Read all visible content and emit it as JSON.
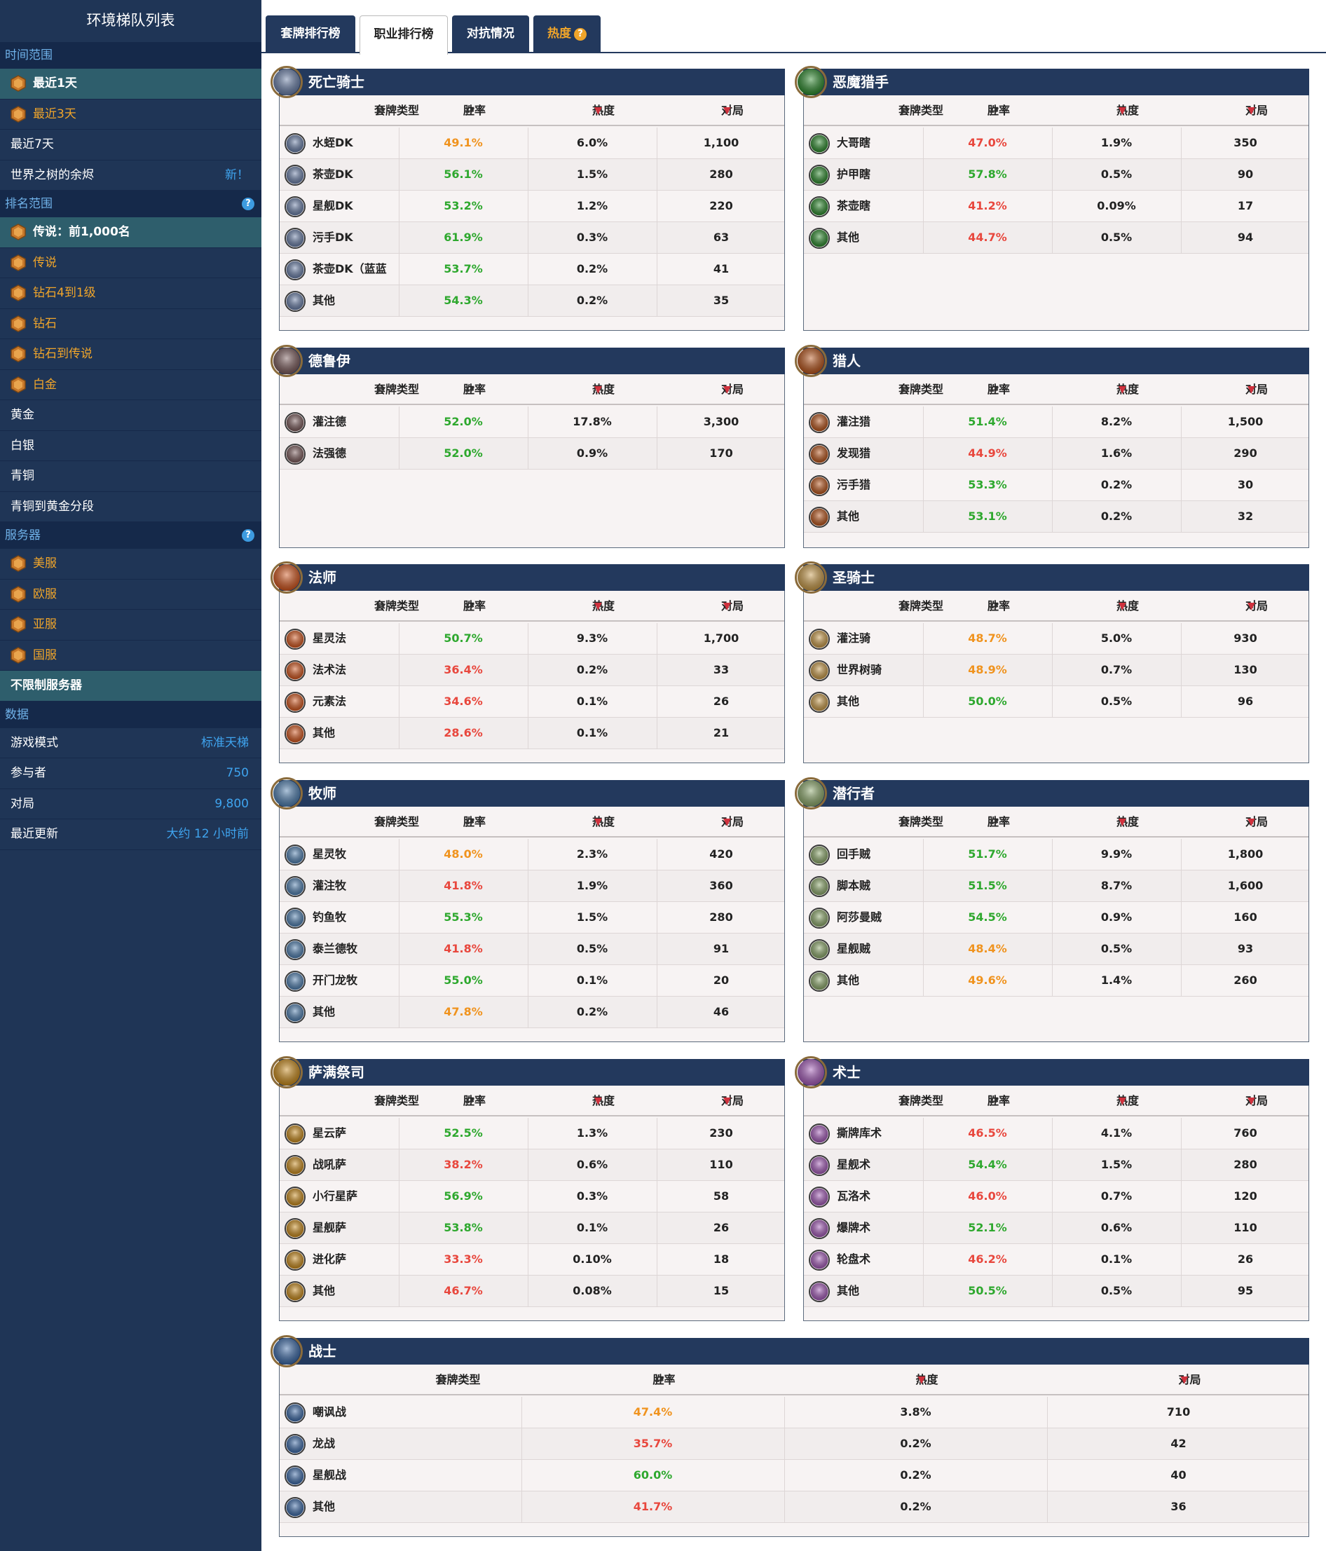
{
  "sidebar": {
    "title": "环境梯队列表",
    "sections": [
      {
        "label": "时间范围",
        "help": false,
        "items": [
          {
            "label": "最近1天",
            "medal": true,
            "active": true,
            "gold": false
          },
          {
            "label": "最近3天",
            "medal": true,
            "active": false,
            "gold": true
          },
          {
            "label": "最近7天",
            "medal": false,
            "active": false,
            "gold": false
          },
          {
            "label": "世界之树的余烬",
            "medal": false,
            "active": false,
            "gold": false,
            "value": "新！"
          }
        ]
      },
      {
        "label": "排名范围",
        "help": true,
        "items": [
          {
            "label": "传说：前1,000名",
            "medal": true,
            "active": true,
            "gold": false
          },
          {
            "label": "传说",
            "medal": true,
            "active": false,
            "gold": true
          },
          {
            "label": "钻石4到1级",
            "medal": true,
            "active": false,
            "gold": true
          },
          {
            "label": "钻石",
            "medal": true,
            "active": false,
            "gold": true
          },
          {
            "label": "钻石到传说",
            "medal": true,
            "active": false,
            "gold": true
          },
          {
            "label": "白金",
            "medal": true,
            "active": false,
            "gold": true
          },
          {
            "label": "黄金",
            "medal": false,
            "active": false,
            "gold": false
          },
          {
            "label": "白银",
            "medal": false,
            "active": false,
            "gold": false
          },
          {
            "label": "青铜",
            "medal": false,
            "active": false,
            "gold": false
          },
          {
            "label": "青铜到黄金分段",
            "medal": false,
            "active": false,
            "gold": false
          }
        ]
      },
      {
        "label": "服务器",
        "help": true,
        "items": [
          {
            "label": "美服",
            "medal": true,
            "active": false,
            "gold": true
          },
          {
            "label": "欧服",
            "medal": true,
            "active": false,
            "gold": true
          },
          {
            "label": "亚服",
            "medal": true,
            "active": false,
            "gold": true
          },
          {
            "label": "国服",
            "medal": true,
            "active": false,
            "gold": true
          },
          {
            "label": "不限制服务器",
            "medal": false,
            "active": true,
            "gold": false
          }
        ]
      },
      {
        "label": "数据",
        "help": false,
        "items": [
          {
            "label": "游戏模式",
            "medal": false,
            "active": false,
            "gold": false,
            "value": "标准天梯"
          },
          {
            "label": "参与者",
            "medal": false,
            "active": false,
            "gold": false,
            "value": "750"
          },
          {
            "label": "对局",
            "medal": false,
            "active": false,
            "gold": false,
            "value": "9,800"
          },
          {
            "label": "最近更新",
            "medal": false,
            "active": false,
            "gold": false,
            "value": "大约 12 小时前"
          }
        ]
      }
    ]
  },
  "tabs": [
    {
      "label": "套牌排行榜",
      "active": false,
      "hot": false
    },
    {
      "label": "职业排行榜",
      "active": true,
      "hot": false
    },
    {
      "label": "对抗情况",
      "active": false,
      "hot": false
    },
    {
      "label": "热度",
      "active": false,
      "hot": true,
      "help": "?"
    }
  ],
  "columns": {
    "deck_type": "套牌类型",
    "winrate": "胜率",
    "popularity": "热度",
    "games": "对局",
    "sort_both": "▴▾",
    "sort_down": "▼"
  },
  "colors": {
    "green": "#2ea82e",
    "orange": "#f0931e",
    "red": "#e8473d",
    "header_navy": "#23395d",
    "sidebar_bg": "#1f3556"
  },
  "classes": [
    {
      "name": "死亡骑士",
      "icon": "death-knight-icon",
      "color": "#6a7fa8",
      "decks": [
        {
          "name": "水蛭DK",
          "winrate": "49.1%",
          "wr": "orange",
          "pop": "6.0%",
          "games": "1,100"
        },
        {
          "name": "茶壶DK",
          "winrate": "56.1%",
          "wr": "green",
          "pop": "1.5%",
          "games": "280"
        },
        {
          "name": "星舰DK",
          "winrate": "53.2%",
          "wr": "green",
          "pop": "1.2%",
          "games": "220"
        },
        {
          "name": "污手DK",
          "winrate": "61.9%",
          "wr": "green",
          "pop": "0.3%",
          "games": "63"
        },
        {
          "name": "茶壶DK（蓝蓝绿）",
          "winrate": "53.7%",
          "wr": "green",
          "pop": "0.2%",
          "games": "41"
        },
        {
          "name": "其他",
          "winrate": "54.3%",
          "wr": "green",
          "pop": "0.2%",
          "games": "35"
        }
      ]
    },
    {
      "name": "恶魔猎手",
      "icon": "demon-hunter-icon",
      "color": "#2c8a2c",
      "decks": [
        {
          "name": "大哥瞎",
          "winrate": "47.0%",
          "wr": "red",
          "pop": "1.9%",
          "games": "350"
        },
        {
          "name": "护甲瞎",
          "winrate": "57.8%",
          "wr": "green",
          "pop": "0.5%",
          "games": "90"
        },
        {
          "name": "茶壶瞎",
          "winrate": "41.2%",
          "wr": "red",
          "pop": "0.09%",
          "games": "17"
        },
        {
          "name": "其他",
          "winrate": "44.7%",
          "wr": "red",
          "pop": "0.5%",
          "games": "94"
        }
      ]
    },
    {
      "name": "德鲁伊",
      "icon": "druid-icon",
      "color": "#7a5a5a",
      "decks": [
        {
          "name": "灌注德",
          "winrate": "52.0%",
          "wr": "green",
          "pop": "17.8%",
          "games": "3,300"
        },
        {
          "name": "法强德",
          "winrate": "52.0%",
          "wr": "green",
          "pop": "0.9%",
          "games": "170"
        }
      ]
    },
    {
      "name": "猎人",
      "icon": "hunter-icon",
      "color": "#b8541a",
      "decks": [
        {
          "name": "灌注猎",
          "winrate": "51.4%",
          "wr": "green",
          "pop": "8.2%",
          "games": "1,500"
        },
        {
          "name": "发现猎",
          "winrate": "44.9%",
          "wr": "red",
          "pop": "1.6%",
          "games": "290"
        },
        {
          "name": "污手猎",
          "winrate": "53.3%",
          "wr": "green",
          "pop": "0.2%",
          "games": "30"
        },
        {
          "name": "其他",
          "winrate": "53.1%",
          "wr": "green",
          "pop": "0.2%",
          "games": "32"
        }
      ]
    },
    {
      "name": "法师",
      "icon": "mage-icon",
      "color": "#d2551c",
      "decks": [
        {
          "name": "星灵法",
          "winrate": "50.7%",
          "wr": "green",
          "pop": "9.3%",
          "games": "1,700"
        },
        {
          "name": "法术法",
          "winrate": "36.4%",
          "wr": "red",
          "pop": "0.2%",
          "games": "33"
        },
        {
          "name": "元素法",
          "winrate": "34.6%",
          "wr": "red",
          "pop": "0.1%",
          "games": "26"
        },
        {
          "name": "其他",
          "winrate": "28.6%",
          "wr": "red",
          "pop": "0.1%",
          "games": "21"
        }
      ]
    },
    {
      "name": "圣骑士",
      "icon": "paladin-icon",
      "color": "#c89a48",
      "decks": [
        {
          "name": "灌注骑",
          "winrate": "48.7%",
          "wr": "orange",
          "pop": "5.0%",
          "games": "930"
        },
        {
          "name": "世界树骑",
          "winrate": "48.9%",
          "wr": "orange",
          "pop": "0.7%",
          "games": "130"
        },
        {
          "name": "其他",
          "winrate": "50.0%",
          "wr": "green",
          "pop": "0.5%",
          "games": "96"
        }
      ]
    },
    {
      "name": "牧师",
      "icon": "priest-icon",
      "color": "#4f7fb0",
      "decks": [
        {
          "name": "星灵牧",
          "winrate": "48.0%",
          "wr": "orange",
          "pop": "2.3%",
          "games": "420"
        },
        {
          "name": "灌注牧",
          "winrate": "41.8%",
          "wr": "red",
          "pop": "1.9%",
          "games": "360"
        },
        {
          "name": "钓鱼牧",
          "winrate": "55.3%",
          "wr": "green",
          "pop": "1.5%",
          "games": "280"
        },
        {
          "name": "泰兰德牧",
          "winrate": "41.8%",
          "wr": "red",
          "pop": "0.5%",
          "games": "91"
        },
        {
          "name": "开门龙牧",
          "winrate": "55.0%",
          "wr": "green",
          "pop": "0.1%",
          "games": "20"
        },
        {
          "name": "其他",
          "winrate": "47.8%",
          "wr": "orange",
          "pop": "0.2%",
          "games": "46"
        }
      ]
    },
    {
      "name": "潜行者",
      "icon": "rogue-icon",
      "color": "#8ca86a",
      "decks": [
        {
          "name": "回手贼",
          "winrate": "51.7%",
          "wr": "green",
          "pop": "9.9%",
          "games": "1,800"
        },
        {
          "name": "脚本贼",
          "winrate": "51.5%",
          "wr": "green",
          "pop": "8.7%",
          "games": "1,600"
        },
        {
          "name": "阿莎曼贼",
          "winrate": "54.5%",
          "wr": "green",
          "pop": "0.9%",
          "games": "160"
        },
        {
          "name": "星舰贼",
          "winrate": "48.4%",
          "wr": "orange",
          "pop": "0.5%",
          "games": "93"
        },
        {
          "name": "其他",
          "winrate": "49.6%",
          "wr": "orange",
          "pop": "1.4%",
          "games": "260"
        }
      ]
    },
    {
      "name": "萨满祭司",
      "icon": "shaman-icon",
      "color": "#c98a1a",
      "decks": [
        {
          "name": "星云萨",
          "winrate": "52.5%",
          "wr": "green",
          "pop": "1.3%",
          "games": "230"
        },
        {
          "name": "战吼萨",
          "winrate": "38.2%",
          "wr": "red",
          "pop": "0.6%",
          "games": "110"
        },
        {
          "name": "小行星萨",
          "winrate": "56.9%",
          "wr": "green",
          "pop": "0.3%",
          "games": "58"
        },
        {
          "name": "星舰萨",
          "winrate": "53.8%",
          "wr": "green",
          "pop": "0.1%",
          "games": "26"
        },
        {
          "name": "进化萨",
          "winrate": "33.3%",
          "wr": "red",
          "pop": "0.10%",
          "games": "18"
        },
        {
          "name": "其他",
          "winrate": "46.7%",
          "wr": "red",
          "pop": "0.08%",
          "games": "15"
        }
      ]
    },
    {
      "name": "术士",
      "icon": "warlock-icon",
      "color": "#a45ab8",
      "decks": [
        {
          "name": "撕牌库术",
          "winrate": "46.5%",
          "wr": "red",
          "pop": "4.1%",
          "games": "760"
        },
        {
          "name": "星舰术",
          "winrate": "54.4%",
          "wr": "green",
          "pop": "1.5%",
          "games": "280"
        },
        {
          "name": "瓦洛术",
          "winrate": "46.0%",
          "wr": "red",
          "pop": "0.7%",
          "games": "120"
        },
        {
          "name": "爆牌术",
          "winrate": "52.1%",
          "wr": "green",
          "pop": "0.6%",
          "games": "110"
        },
        {
          "name": "轮盘术",
          "winrate": "46.2%",
          "wr": "red",
          "pop": "0.1%",
          "games": "26"
        },
        {
          "name": "其他",
          "winrate": "50.5%",
          "wr": "green",
          "pop": "0.5%",
          "games": "95"
        }
      ]
    },
    {
      "name": "战士",
      "icon": "warrior-icon",
      "color": "#3c6aa8",
      "decks": [
        {
          "name": "嘲讽战",
          "winrate": "47.4%",
          "wr": "orange",
          "pop": "3.8%",
          "games": "710"
        },
        {
          "name": "龙战",
          "winrate": "35.7%",
          "wr": "red",
          "pop": "0.2%",
          "games": "42"
        },
        {
          "name": "星舰战",
          "winrate": "60.0%",
          "wr": "green",
          "pop": "0.2%",
          "games": "40"
        },
        {
          "name": "其他",
          "winrate": "41.7%",
          "wr": "red",
          "pop": "0.2%",
          "games": "36"
        }
      ]
    }
  ]
}
